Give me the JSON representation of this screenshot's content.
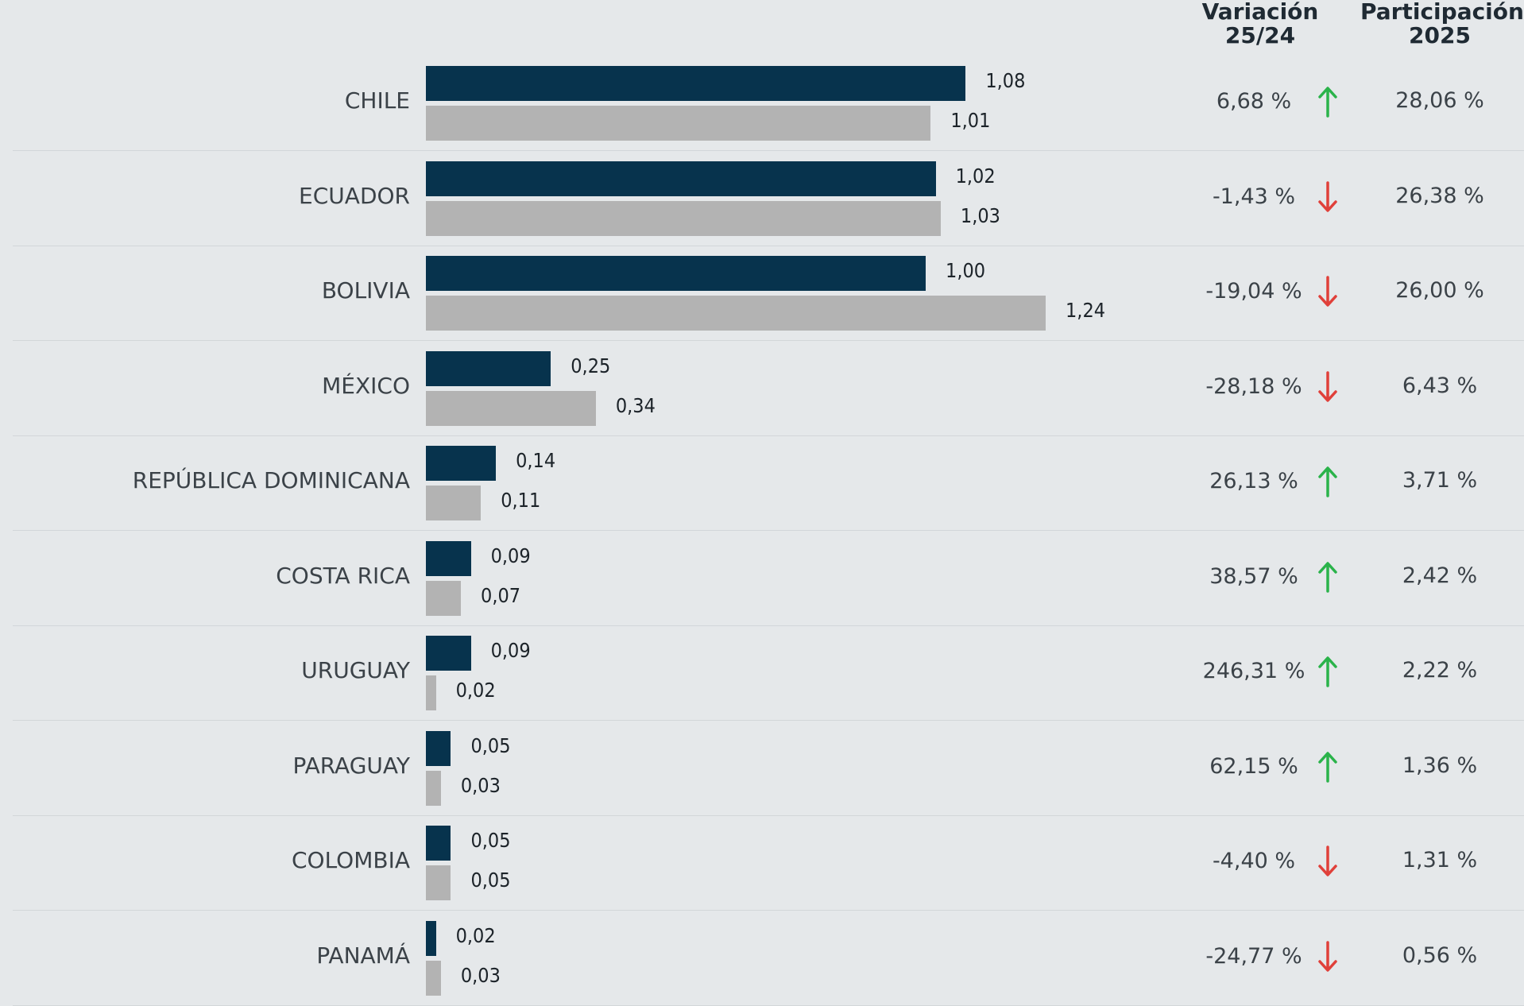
{
  "headers": {
    "variation_line1": "Variación",
    "variation_line2": "25/24",
    "share_line1": "Participación",
    "share_line2": "2025"
  },
  "colors": {
    "current": "#07334d",
    "previous": "#b3b3b3",
    "up": "#2ab34a",
    "down": "#e0403a"
  },
  "chart_data": {
    "type": "bar",
    "orientation": "horizontal",
    "categories": [
      "CHILE",
      "ECUADOR",
      "BOLIVIA",
      "MÉXICO",
      "REPÚBLICA DOMINICANA",
      "COSTA RICA",
      "URUGUAY",
      "PARAGUAY",
      "COLOMBIA",
      "PANAMÁ"
    ],
    "series": [
      {
        "values": [
          1.08,
          1.02,
          1.0,
          0.25,
          0.14,
          0.09,
          0.09,
          0.05,
          0.05,
          0.02
        ],
        "labels": [
          "1,08",
          "1,02",
          "1,00",
          "0,25",
          "0,14",
          "0,09",
          "0,09",
          "0,05",
          "0,05",
          "0,02"
        ]
      },
      {
        "values": [
          1.01,
          1.03,
          1.24,
          0.34,
          0.11,
          0.07,
          0.02,
          0.03,
          0.05,
          0.03
        ],
        "labels": [
          "1,01",
          "1,03",
          "1,24",
          "0,34",
          "0,11",
          "0,07",
          "0,02",
          "0,03",
          "0,05",
          "0,03"
        ]
      }
    ],
    "variation": [
      "6,68 %",
      "-1,43 %",
      "-19,04 %",
      "-28,18 %",
      "26,13 %",
      "38,57 %",
      "246,31 %",
      "62,15 %",
      "-4,40 %",
      "-24,77 %"
    ],
    "variation_direction": [
      "up",
      "down",
      "down",
      "down",
      "up",
      "up",
      "up",
      "up",
      "down",
      "down"
    ],
    "share": [
      "28,06 %",
      "26,38 %",
      "26,00 %",
      "6,43 %",
      "3,71 %",
      "2,42 %",
      "2,22 %",
      "1,36 %",
      "1,31 %",
      "0,56 %"
    ],
    "xlim": [
      0,
      1.24
    ],
    "grid": false,
    "legend": "none"
  }
}
